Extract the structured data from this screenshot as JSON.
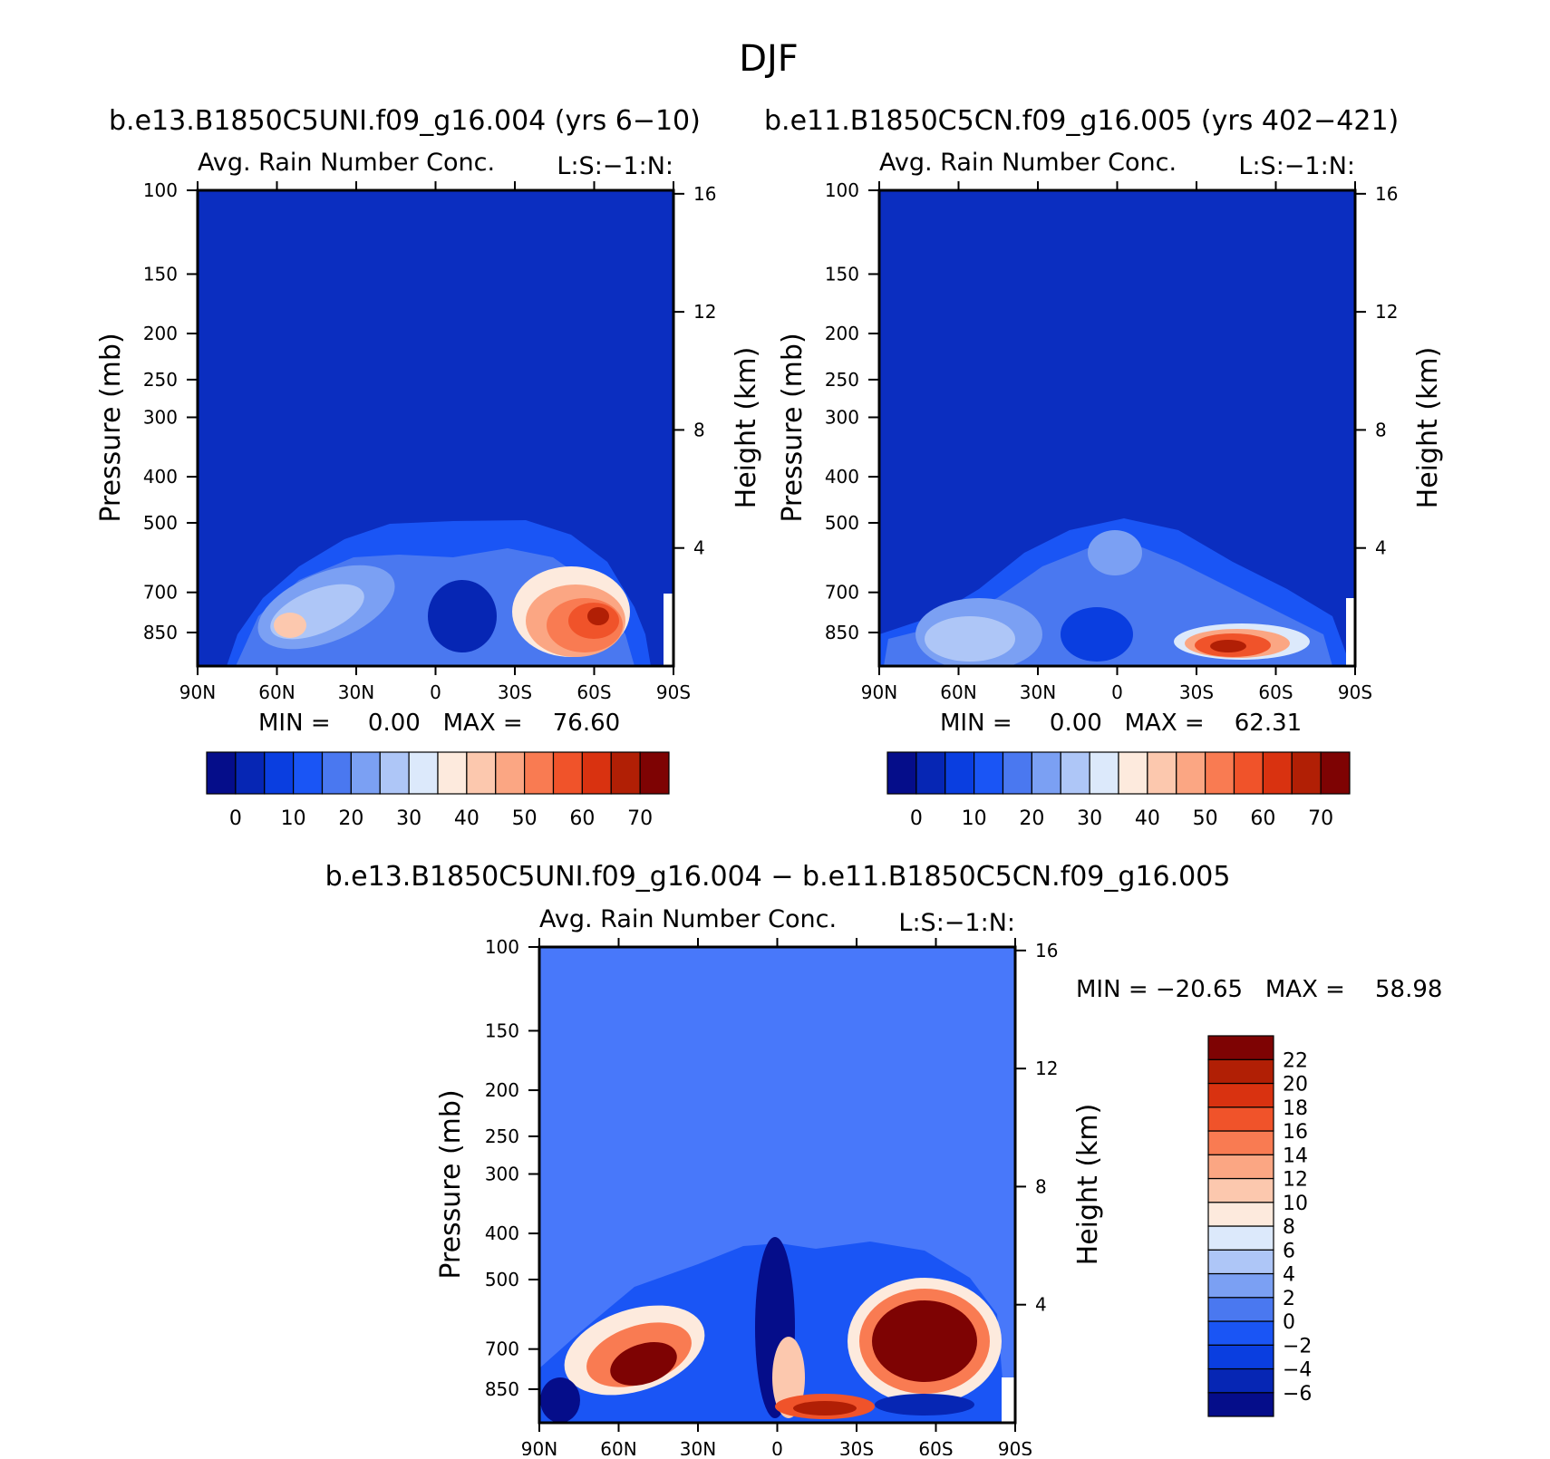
{
  "page_title": "DJF",
  "diff_title": "b.e13.B1850C5UNI.f09_g16.004 − b.e11.B1850C5CN.f09_g16.005",
  "colors": {
    "background_panels": "#0b2ec0",
    "background_diff": "#4878fa",
    "abs_palette": [
      "#050d8a",
      "#0626b4",
      "#0a3ee0",
      "#1a55f5",
      "#4a78f0",
      "#7ba0f3",
      "#aec6f7",
      "#dce9fb",
      "#fdeadd",
      "#fcc8ae",
      "#fba683",
      "#f97b52",
      "#f0532a",
      "#d93210",
      "#b11f05",
      "#7e0303"
    ],
    "diff_palette": [
      "#050d8a",
      "#0626b4",
      "#0a3ee0",
      "#1a55f5",
      "#4a78f0",
      "#7ba0f3",
      "#aec6f7",
      "#dce9fb",
      "#fdeadd",
      "#fcc8ae",
      "#fba683",
      "#f97b52",
      "#f0532a",
      "#d93210",
      "#b11f05",
      "#7e0303"
    ]
  },
  "chart_data": [
    {
      "type": "heatmap",
      "title": "b.e13.B1850C5UNI.f09_g16.004 (yrs 6−10)",
      "subtitle_left": "Avg. Rain Number Conc.",
      "subtitle_right": "L:S:−1:N:",
      "xlabel": "",
      "ylabel": "Pressure (mb)",
      "ylabel_right": "Height (km)",
      "x_ticks": [
        "90N",
        "60N",
        "30N",
        "0",
        "30S",
        "60S",
        "90S"
      ],
      "y_ticks": [
        "100",
        "150",
        "200",
        "250",
        "300",
        "400",
        "500",
        "700",
        "850"
      ],
      "y_ticks_right": [
        "16",
        "12",
        "8",
        "4"
      ],
      "y_scale": "log",
      "stats": "MIN =     0.00   MAX =    76.60",
      "colorbar_labels": [
        "0",
        "10",
        "20",
        "30",
        "40",
        "50",
        "60",
        "70"
      ],
      "features": [
        {
          "lat": 52,
          "p": 770,
          "value": 40
        },
        {
          "lat": 40,
          "p": 700,
          "value": 32
        },
        {
          "lat": 15,
          "p": 700,
          "value": 15
        },
        {
          "lat": -45,
          "p": 760,
          "value": 55
        },
        {
          "lat": -60,
          "p": 720,
          "value": 76.6
        }
      ]
    },
    {
      "type": "heatmap",
      "title": "b.e11.B1850C5CN.f09_g16.005 (yrs 402−421)",
      "subtitle_left": "Avg. Rain Number Conc.",
      "subtitle_right": "L:S:−1:N:",
      "xlabel": "",
      "ylabel": "Pressure (mb)",
      "ylabel_right": "Height (km)",
      "x_ticks": [
        "90N",
        "60N",
        "30N",
        "0",
        "30S",
        "60S",
        "90S"
      ],
      "y_ticks": [
        "100",
        "150",
        "200",
        "250",
        "300",
        "400",
        "500",
        "700",
        "850"
      ],
      "y_ticks_right": [
        "16",
        "12",
        "8",
        "4"
      ],
      "y_scale": "log",
      "stats": "MIN =     0.00   MAX =    62.31",
      "colorbar_labels": [
        "0",
        "10",
        "20",
        "30",
        "40",
        "50",
        "60",
        "70"
      ],
      "features": [
        {
          "lat": 50,
          "p": 830,
          "value": 30
        },
        {
          "lat": 25,
          "p": 760,
          "value": 28
        },
        {
          "lat": -45,
          "p": 840,
          "value": 62.3
        }
      ]
    },
    {
      "type": "heatmap",
      "title": "",
      "subtitle_left": "Avg. Rain Number Conc.",
      "subtitle_right": "L:S:−1:N:",
      "xlabel": "",
      "ylabel": "Pressure (mb)",
      "ylabel_right": "Height (km)",
      "x_ticks": [
        "90N",
        "60N",
        "30N",
        "0",
        "30S",
        "60S",
        "90S"
      ],
      "y_ticks": [
        "100",
        "150",
        "200",
        "250",
        "300",
        "400",
        "500",
        "700",
        "850"
      ],
      "y_ticks_right": [
        "16",
        "12",
        "8",
        "4"
      ],
      "y_scale": "log",
      "stats": "MIN = −20.65   MAX =    58.98",
      "colorbar_labels": [
        "22",
        "20",
        "18",
        "16",
        "14",
        "12",
        "10",
        "8",
        "6",
        "4",
        "2",
        "0",
        "−2",
        "−4",
        "−6"
      ],
      "features": [
        {
          "lat": 50,
          "p": 720,
          "value": 24
        },
        {
          "lat": 35,
          "p": 640,
          "value": 12
        },
        {
          "lat": -55,
          "p": 650,
          "value": 58.98
        },
        {
          "lat": -15,
          "p": 880,
          "value": 24
        },
        {
          "lat": 0,
          "p": 520,
          "value": -20.65
        }
      ]
    }
  ]
}
